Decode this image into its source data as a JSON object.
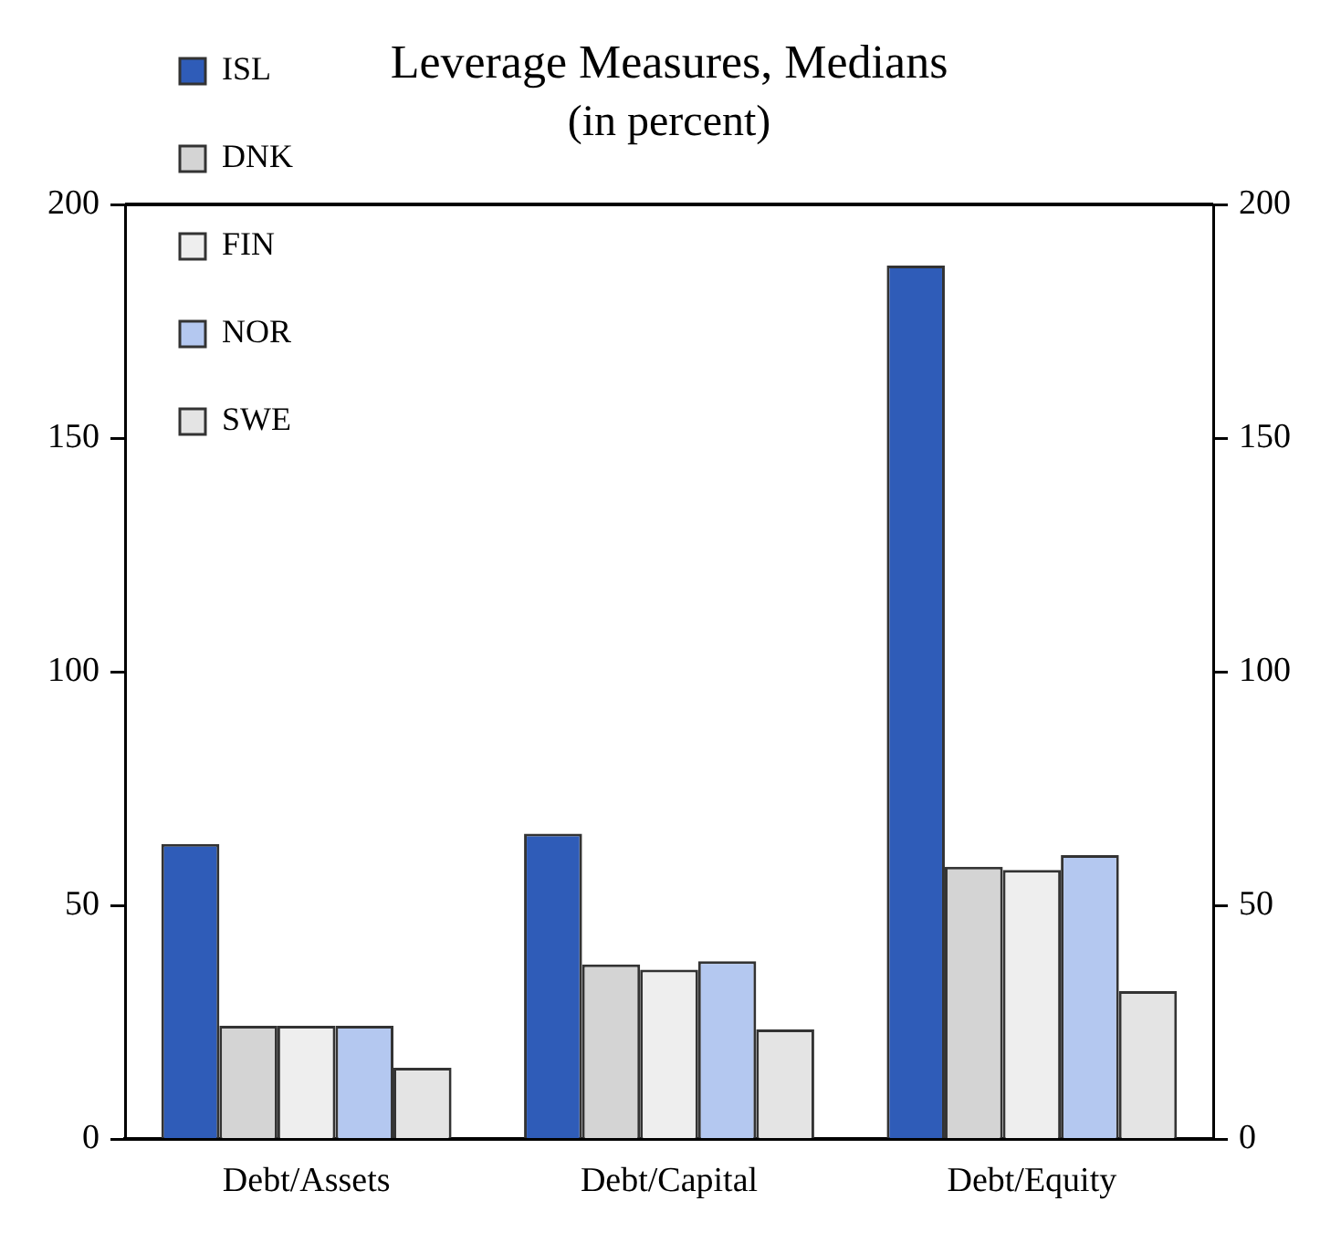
{
  "chart_data": {
    "type": "bar",
    "title": "Leverage Measures, Medians",
    "subtitle": "(in percent)",
    "categories": [
      "Debt/Assets",
      "Debt/Capital",
      "Debt/Equity"
    ],
    "series": [
      {
        "name": "ISL",
        "color": "#2f5cb8",
        "values": [
          63.2,
          65.4,
          186.9
        ]
      },
      {
        "name": "DNK",
        "color": "#d4d4d4",
        "values": [
          24.3,
          37.4,
          58.3
        ]
      },
      {
        "name": "FIN",
        "color": "#eeeeee",
        "values": [
          24.3,
          36.3,
          57.6
        ]
      },
      {
        "name": "NOR",
        "color": "#b4c8f0",
        "values": [
          24.3,
          38.1,
          60.8
        ]
      },
      {
        "name": "SWE",
        "color": "#e4e4e4",
        "values": [
          15.3,
          23.5,
          31.7
        ]
      }
    ],
    "ylim": [
      0,
      200
    ],
    "yticks": [
      0,
      50,
      100,
      150,
      200
    ],
    "y2lim": [
      0,
      200
    ],
    "y2ticks": [
      0,
      50,
      100,
      150,
      200
    ],
    "grid": false,
    "legend": "top left"
  }
}
